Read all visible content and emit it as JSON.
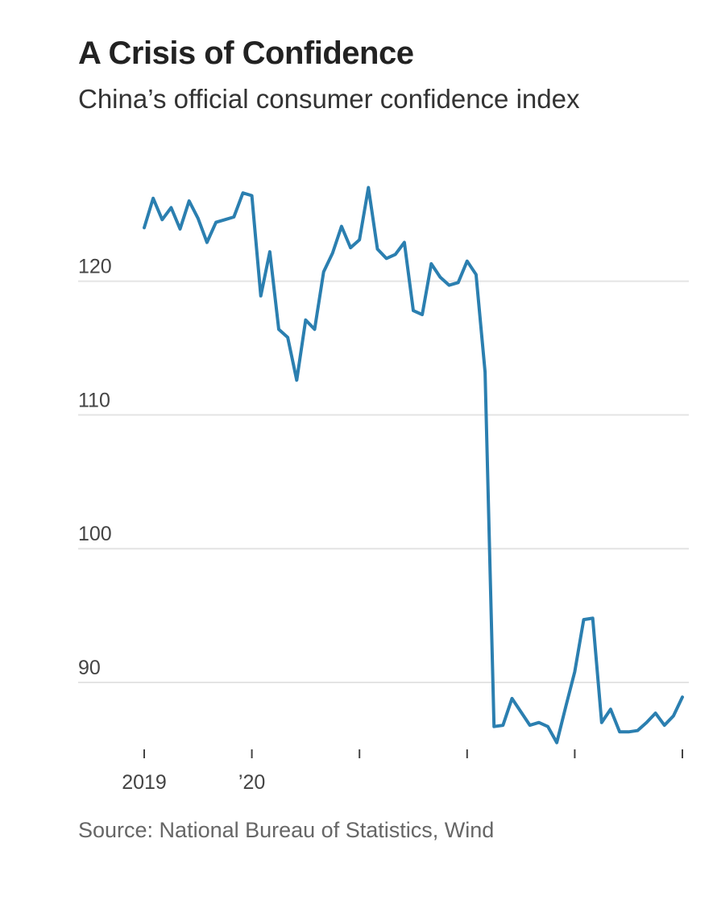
{
  "title": "A Crisis of Confidence",
  "subtitle": "China’s official consumer confidence index",
  "source": "Source: National Bureau of Statistics, Wind",
  "colors": {
    "line": "#2b7fb0",
    "grid": "#e4e4e4",
    "axis": "#444444"
  },
  "chart_data": {
    "type": "line",
    "title": "A Crisis of Confidence",
    "subtitle": "China’s official consumer confidence index",
    "xlabel": "",
    "ylabel": "",
    "ylim": [
      85,
      129
    ],
    "yticks": [
      90,
      100,
      110,
      120
    ],
    "grid": true,
    "x_start": "2019-01",
    "x_tick_labels": [
      {
        "month_index": 0,
        "label": "2019"
      },
      {
        "month_index": 12,
        "label": "’20"
      },
      {
        "month_index": 24,
        "label": ""
      },
      {
        "month_index": 36,
        "label": ""
      },
      {
        "month_index": 48,
        "label": ""
      },
      {
        "month_index": 60,
        "label": ""
      }
    ],
    "series": [
      {
        "values": [
          124.0,
          126.2,
          124.6,
          125.5,
          123.9,
          126.0,
          124.7,
          122.9,
          124.4,
          124.6,
          124.8,
          126.6,
          126.4,
          118.9,
          122.2,
          116.4,
          115.8,
          112.6,
          117.1,
          116.4,
          120.7,
          122.1,
          124.1,
          122.5,
          123.1,
          127.0,
          122.4,
          121.7,
          122.0,
          122.9,
          117.8,
          117.5,
          121.3,
          120.3,
          119.7,
          119.9,
          121.5,
          120.5,
          113.2,
          86.7,
          86.8,
          88.8,
          87.8,
          86.8,
          87.0,
          86.7,
          85.5,
          88.2,
          90.8,
          94.7,
          94.8,
          87.0,
          88.0,
          86.3,
          86.3,
          86.4,
          87.0,
          87.7,
          86.8,
          87.5,
          88.9
        ]
      }
    ]
  }
}
